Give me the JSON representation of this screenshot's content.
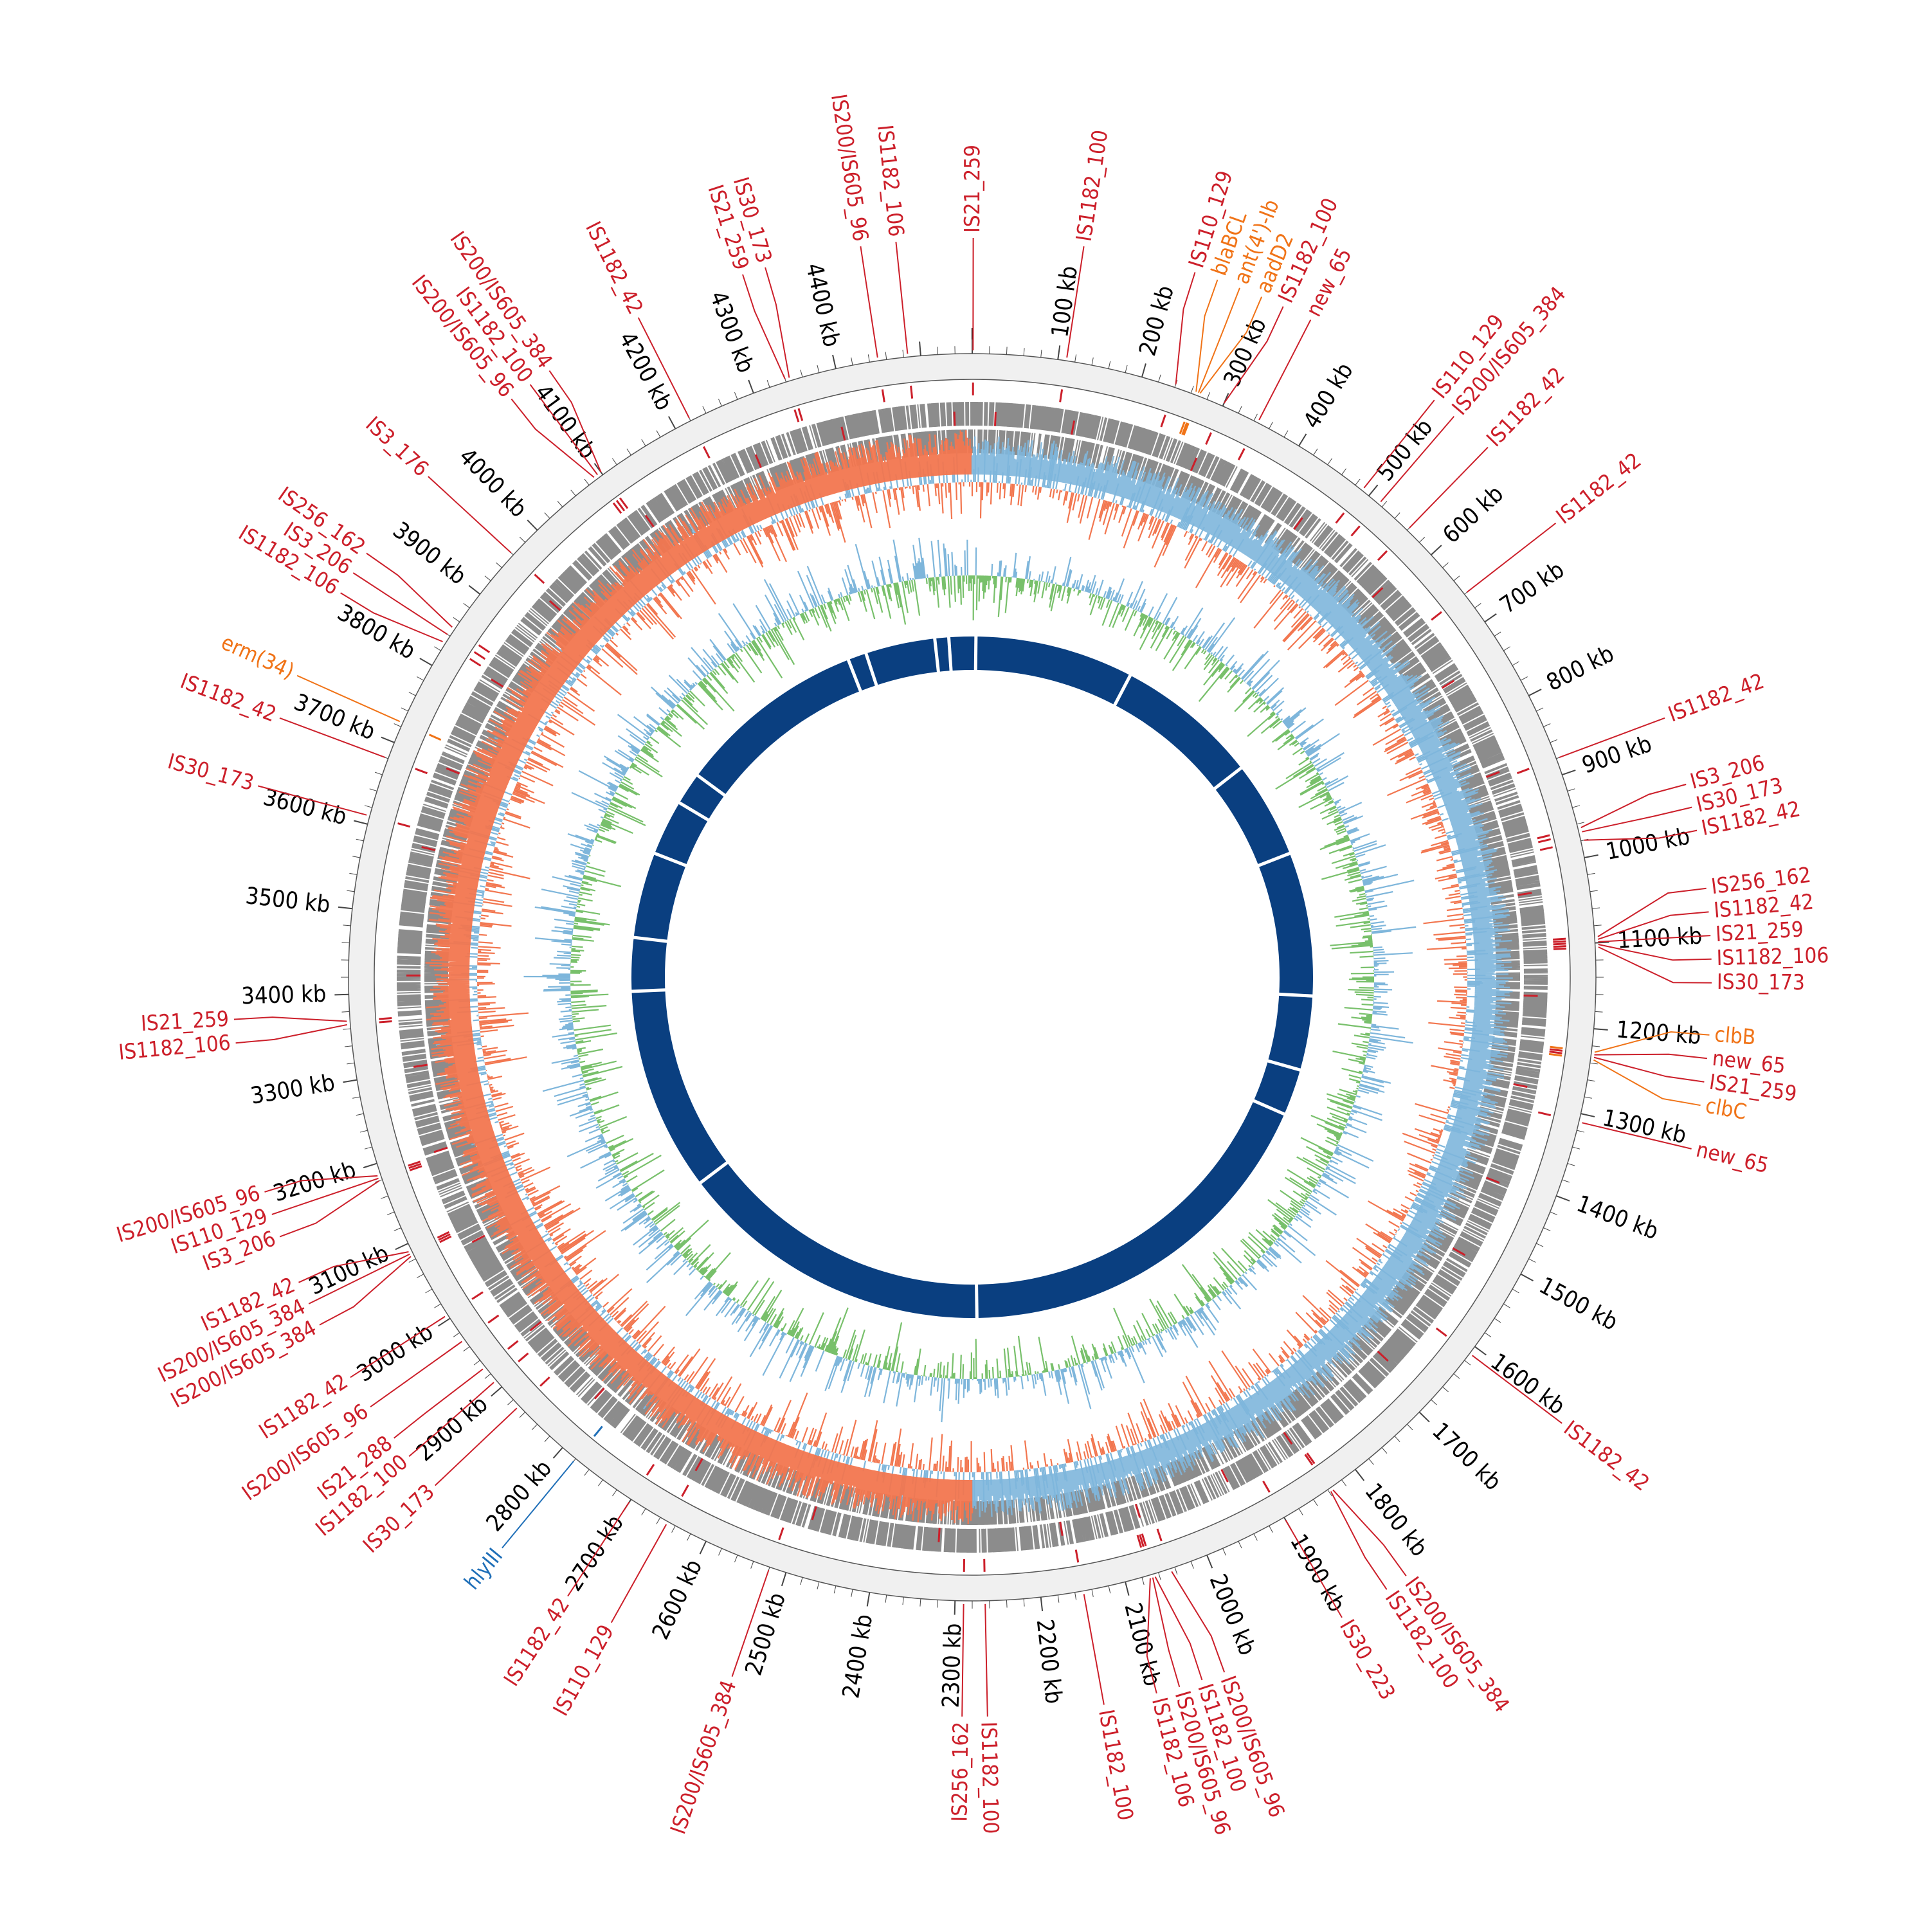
{
  "genome": {
    "total_kb": 4560
  },
  "colors": {
    "is": "#cc1f2a",
    "resistance": "#f07317",
    "virulence": "#1f6fb8",
    "cds": "#8c8c8c",
    "gc_content_pos": "#7eb6db",
    "gc_content_neg": "#f2764f",
    "gc_skew_pos": "#7eb6db",
    "gc_skew_neg": "#78c06b",
    "blast_ring": "#0a3f80",
    "axis": "#f0f0f0"
  },
  "ticks": [
    {
      "kb": 100,
      "label": "100 kb"
    },
    {
      "kb": 200,
      "label": "200 kb"
    },
    {
      "kb": 300,
      "label": "300 kb"
    },
    {
      "kb": 400,
      "label": "400 kb"
    },
    {
      "kb": 500,
      "label": "500 kb"
    },
    {
      "kb": 600,
      "label": "600 kb"
    },
    {
      "kb": 700,
      "label": "700 kb"
    },
    {
      "kb": 800,
      "label": "800 kb"
    },
    {
      "kb": 900,
      "label": "900 kb"
    },
    {
      "kb": 1000,
      "label": "1000 kb"
    },
    {
      "kb": 1100,
      "label": "1100 kb"
    },
    {
      "kb": 1200,
      "label": "1200 kb"
    },
    {
      "kb": 1300,
      "label": "1300 kb"
    },
    {
      "kb": 1400,
      "label": "1400 kb"
    },
    {
      "kb": 1500,
      "label": "1500 kb"
    },
    {
      "kb": 1600,
      "label": "1600 kb"
    },
    {
      "kb": 1700,
      "label": "1700 kb"
    },
    {
      "kb": 1800,
      "label": "1800 kb"
    },
    {
      "kb": 1900,
      "label": "1900 kb"
    },
    {
      "kb": 2000,
      "label": "2000 kb"
    },
    {
      "kb": 2100,
      "label": "2100 kb"
    },
    {
      "kb": 2200,
      "label": "2200 kb"
    },
    {
      "kb": 2300,
      "label": "2300 kb"
    },
    {
      "kb": 2400,
      "label": "2400 kb"
    },
    {
      "kb": 2500,
      "label": "2500 kb"
    },
    {
      "kb": 2600,
      "label": "2600 kb"
    },
    {
      "kb": 2700,
      "label": "2700 kb"
    },
    {
      "kb": 2800,
      "label": "2800 kb"
    },
    {
      "kb": 2900,
      "label": "2900 kb"
    },
    {
      "kb": 3000,
      "label": "3000 kb"
    },
    {
      "kb": 3100,
      "label": "3100 kb"
    },
    {
      "kb": 3200,
      "label": "3200 kb"
    },
    {
      "kb": 3300,
      "label": "3300 kb"
    },
    {
      "kb": 3400,
      "label": "3400 kb"
    },
    {
      "kb": 3500,
      "label": "3500 kb"
    },
    {
      "kb": 3600,
      "label": "3600 kb"
    },
    {
      "kb": 3700,
      "label": "3700 kb"
    },
    {
      "kb": 3800,
      "label": "3800 kb"
    },
    {
      "kb": 3900,
      "label": "3900 kb"
    },
    {
      "kb": 4000,
      "label": "4000 kb"
    },
    {
      "kb": 4100,
      "label": "4100 kb"
    },
    {
      "kb": 4200,
      "label": "4200 kb"
    },
    {
      "kb": 4300,
      "label": "4300 kb"
    },
    {
      "kb": 4400,
      "label": "4400 kb"
    }
  ],
  "features": [
    {
      "kb": 1,
      "label": "IS21_259",
      "type": "is"
    },
    {
      "kb": 110,
      "label": "IS1182_100",
      "type": "is"
    },
    {
      "kb": 240,
      "label": "IS110_129",
      "type": "is"
    },
    {
      "kb": 265,
      "label": "blaBCL",
      "type": "resistance"
    },
    {
      "kb": 268,
      "label": "ant(4')-Ib",
      "type": "resistance"
    },
    {
      "kb": 270,
      "label": "aadD2",
      "type": "resistance"
    },
    {
      "kb": 300,
      "label": "IS1182_100",
      "type": "is"
    },
    {
      "kb": 345,
      "label": "new_65",
      "type": "is"
    },
    {
      "kb": 490,
      "label": "IS110_129",
      "type": "is"
    },
    {
      "kb": 515,
      "label": "IS200/IS605_384",
      "type": "is"
    },
    {
      "kb": 560,
      "label": "IS1182_42",
      "type": "is"
    },
    {
      "kb": 660,
      "label": "IS1182_42",
      "type": "is"
    },
    {
      "kb": 880,
      "label": "IS1182_42",
      "type": "is"
    },
    {
      "kb": 965,
      "label": "IS3_206",
      "type": "is"
    },
    {
      "kb": 970,
      "label": "IS30_173",
      "type": "is"
    },
    {
      "kb": 980,
      "label": "IS1182_42",
      "type": "is"
    },
    {
      "kb": 1093,
      "label": "IS256_162",
      "type": "is"
    },
    {
      "kb": 1096,
      "label": "IS1182_42",
      "type": "is"
    },
    {
      "kb": 1099,
      "label": "IS21_259",
      "type": "is"
    },
    {
      "kb": 1102,
      "label": "IS1182_106",
      "type": "is"
    },
    {
      "kb": 1105,
      "label": "IS30_173",
      "type": "is"
    },
    {
      "kb": 1227,
      "label": "clbB",
      "type": "resistance"
    },
    {
      "kb": 1230,
      "label": "new_65",
      "type": "is"
    },
    {
      "kb": 1233,
      "label": "IS21_259",
      "type": "is"
    },
    {
      "kb": 1236,
      "label": "clbC",
      "type": "resistance"
    },
    {
      "kb": 1310,
      "label": "new_65",
      "type": "is"
    },
    {
      "kb": 1610,
      "label": "IS1182_42",
      "type": "is"
    },
    {
      "kb": 1835,
      "label": "IS200/IS605_384",
      "type": "is"
    },
    {
      "kb": 1838,
      "label": "IS1182_100",
      "type": "is"
    },
    {
      "kb": 1900,
      "label": "IS30_223",
      "type": "is"
    },
    {
      "kb": 2045,
      "label": "IS200/IS605_96",
      "type": "is"
    },
    {
      "kb": 2065,
      "label": "IS1182_100",
      "type": "is"
    },
    {
      "kb": 2068,
      "label": "IS200/IS605_96",
      "type": "is"
    },
    {
      "kb": 2071,
      "label": "IS1182_106",
      "type": "is"
    },
    {
      "kb": 2150,
      "label": "IS1182_100",
      "type": "is"
    },
    {
      "kb": 2265,
      "label": "IS1182_100",
      "type": "is"
    },
    {
      "kb": 2290,
      "label": "IS256_162",
      "type": "is"
    },
    {
      "kb": 2520,
      "label": "IS200/IS605_384",
      "type": "is"
    },
    {
      "kb": 2650,
      "label": "IS110_129",
      "type": "is"
    },
    {
      "kb": 2700,
      "label": "IS1182_42",
      "type": "is"
    },
    {
      "kb": 2780,
      "label": "hlyIII",
      "type": "virulence"
    },
    {
      "kb": 2870,
      "label": "IS30_173",
      "type": "is"
    },
    {
      "kb": 2910,
      "label": "IS1182_100",
      "type": "is"
    },
    {
      "kb": 2930,
      "label": "IS21_288",
      "type": "is"
    },
    {
      "kb": 2970,
      "label": "IS200/IS605_96",
      "type": "is"
    },
    {
      "kb": 3005,
      "label": "IS1182_42",
      "type": "is"
    },
    {
      "kb": 3085,
      "label": "IS200/IS605_384",
      "type": "is"
    },
    {
      "kb": 3088,
      "label": "IS200/IS605_384",
      "type": "is"
    },
    {
      "kb": 3091,
      "label": "IS1182_42",
      "type": "is"
    },
    {
      "kb": 3180,
      "label": "IS3_206",
      "type": "is"
    },
    {
      "kb": 3183,
      "label": "IS110_129",
      "type": "is"
    },
    {
      "kb": 3186,
      "label": "IS200/IS605_96",
      "type": "is"
    },
    {
      "kb": 3365,
      "label": "IS1182_106",
      "type": "is"
    },
    {
      "kb": 3369,
      "label": "IS21_259",
      "type": "is"
    },
    {
      "kb": 3610,
      "label": "IS30_173",
      "type": "is"
    },
    {
      "kb": 3680,
      "label": "IS1182_42",
      "type": "is"
    },
    {
      "kb": 3725,
      "label": "erm(34)",
      "type": "resistance"
    },
    {
      "kb": 3830,
      "label": "IS1182_106",
      "type": "is"
    },
    {
      "kb": 3840,
      "label": "IS3_206",
      "type": "is"
    },
    {
      "kb": 3850,
      "label": "IS256_162",
      "type": "is"
    },
    {
      "kb": 3960,
      "label": "IS3_176",
      "type": "is"
    },
    {
      "kb": 4090,
      "label": "IS200/IS605_96",
      "type": "is"
    },
    {
      "kb": 4095,
      "label": "IS1182_100",
      "type": "is"
    },
    {
      "kb": 4100,
      "label": "IS200/IS605_384",
      "type": "is"
    },
    {
      "kb": 4220,
      "label": "IS1182_42",
      "type": "is"
    },
    {
      "kb": 4340,
      "label": "IS21_259",
      "type": "is"
    },
    {
      "kb": 4345,
      "label": "IS30_173",
      "type": "is"
    },
    {
      "kb": 4450,
      "label": "IS200/IS605_96",
      "type": "is"
    },
    {
      "kb": 4485,
      "label": "IS1182_106",
      "type": "is"
    }
  ]
}
